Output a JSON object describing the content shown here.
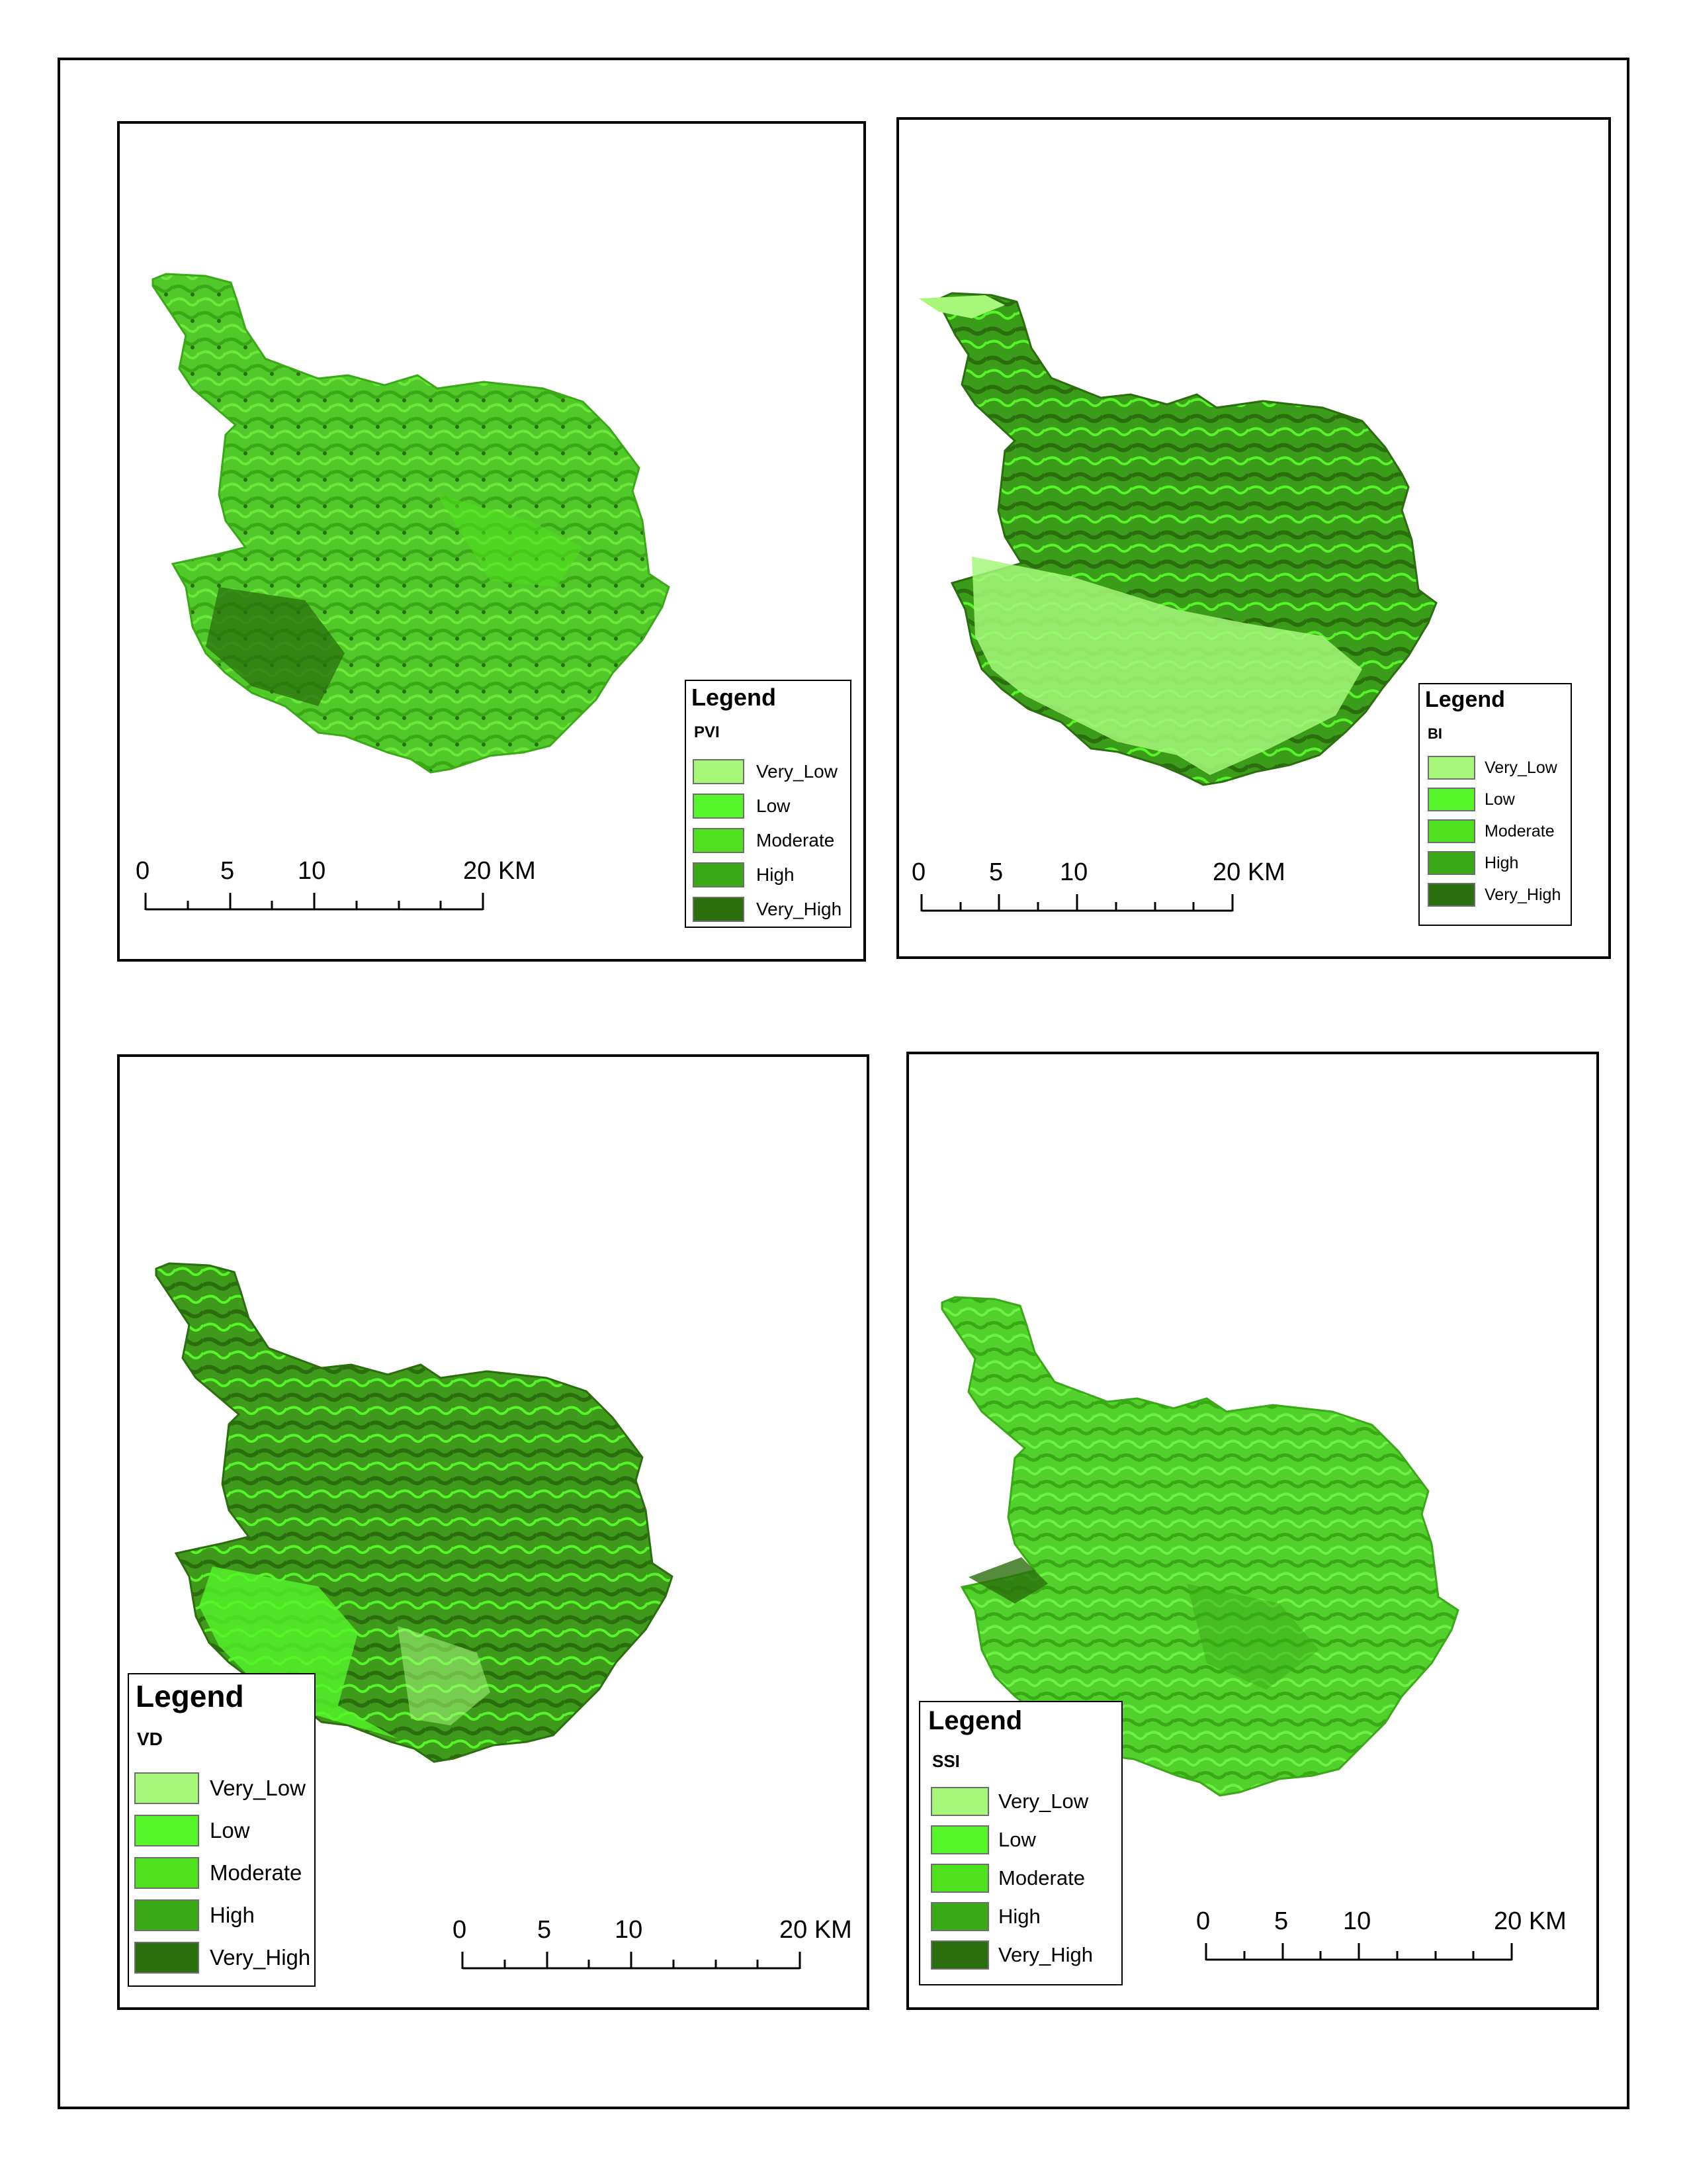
{
  "legend_classes": [
    {
      "label": "Very_Low",
      "color": "#a6f77a"
    },
    {
      "label": "Low",
      "color": "#55f52a"
    },
    {
      "label": "Moderate",
      "color": "#4fe01e"
    },
    {
      "label": "High",
      "color": "#3aa916"
    },
    {
      "label": "Very_High",
      "color": "#2a6e0d"
    }
  ],
  "panels": [
    {
      "id": "pvi",
      "legend_title": "Legend",
      "field": "PVI",
      "dominant": "#52c92a"
    },
    {
      "id": "bi",
      "legend_title": "Legend",
      "field": "BI",
      "dominant": "#3b9c1a"
    },
    {
      "id": "vd",
      "legend_title": "Legend",
      "field": "VD",
      "dominant": "#3f9a1b"
    },
    {
      "id": "ssi",
      "legend_title": "Legend",
      "field": "SSI",
      "dominant": "#52d12c"
    }
  ],
  "scalebar": {
    "labels": [
      "0",
      "5",
      "10",
      "20 KM"
    ],
    "units": "KM"
  }
}
